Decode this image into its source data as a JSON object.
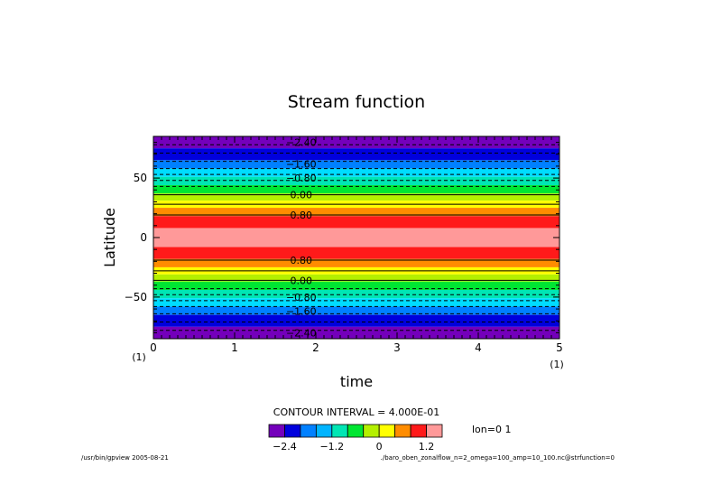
{
  "chart_data": {
    "type": "heatmap",
    "title": "Stream function",
    "xlabel": "time",
    "ylabel": "Latitude",
    "xlim": [
      0,
      5
    ],
    "ylim": [
      -85,
      85
    ],
    "x_ticks": [
      "0",
      "1",
      "2",
      "3",
      "4",
      "5"
    ],
    "x_unit_marks": [
      "(1)",
      "(1)"
    ],
    "y_ticks": [
      "50",
      "0",
      "−50"
    ],
    "y_tick_values": [
      50,
      0,
      -50
    ],
    "bands": [
      {
        "lat_min": 75,
        "lat_max": 85,
        "color": "#7400bb"
      },
      {
        "lat_min": 65,
        "lat_max": 75,
        "color": "#0000dd"
      },
      {
        "lat_min": 58,
        "lat_max": 65,
        "color": "#0080ff"
      },
      {
        "lat_min": 51,
        "lat_max": 58,
        "color": "#00dcff"
      },
      {
        "lat_min": 44,
        "lat_max": 51,
        "color": "#00e6b4"
      },
      {
        "lat_min": 37,
        "lat_max": 44,
        "color": "#00e632"
      },
      {
        "lat_min": 31,
        "lat_max": 37,
        "color": "#b4f000"
      },
      {
        "lat_min": 25,
        "lat_max": 31,
        "color": "#ffff00"
      },
      {
        "lat_min": 18,
        "lat_max": 25,
        "color": "#ff8c00"
      },
      {
        "lat_min": 8,
        "lat_max": 18,
        "color": "#ff1a1a"
      },
      {
        "lat_min": -8,
        "lat_max": 8,
        "color": "#ff9999"
      },
      {
        "lat_min": -18,
        "lat_max": -8,
        "color": "#ff1a1a"
      },
      {
        "lat_min": -25,
        "lat_max": -18,
        "color": "#ff8c00"
      },
      {
        "lat_min": -31,
        "lat_max": -25,
        "color": "#ffff00"
      },
      {
        "lat_min": -37,
        "lat_max": -31,
        "color": "#b4f000"
      },
      {
        "lat_min": -44,
        "lat_max": -37,
        "color": "#00e632"
      },
      {
        "lat_min": -51,
        "lat_max": -44,
        "color": "#00e6b4"
      },
      {
        "lat_min": -58,
        "lat_max": -51,
        "color": "#00dcff"
      },
      {
        "lat_min": -65,
        "lat_max": -58,
        "color": "#0080ff"
      },
      {
        "lat_min": -75,
        "lat_max": -65,
        "color": "#0000dd"
      },
      {
        "lat_min": -85,
        "lat_max": -75,
        "color": "#7400bb"
      }
    ],
    "contours": [
      {
        "lat": 78,
        "dashed": true
      },
      {
        "lat": 71,
        "dashed": true
      },
      {
        "lat": 64,
        "dashed": true
      },
      {
        "lat": 58,
        "dashed": true
      },
      {
        "lat": 53,
        "dashed": true
      },
      {
        "lat": 48,
        "dashed": true
      },
      {
        "lat": 43,
        "dashed": true
      },
      {
        "lat": 36,
        "dashed": false
      },
      {
        "lat": 28,
        "dashed": false
      },
      {
        "lat": 19,
        "dashed": false
      },
      {
        "lat": -19,
        "dashed": false
      },
      {
        "lat": -28,
        "dashed": false
      },
      {
        "lat": -36,
        "dashed": false
      },
      {
        "lat": -43,
        "dashed": true
      },
      {
        "lat": -48,
        "dashed": true
      },
      {
        "lat": -53,
        "dashed": true
      },
      {
        "lat": -58,
        "dashed": true
      },
      {
        "lat": -64,
        "dashed": true
      },
      {
        "lat": -71,
        "dashed": true
      },
      {
        "lat": -78,
        "dashed": true
      }
    ],
    "contour_labels": [
      {
        "text": "−2.40",
        "lat": 80
      },
      {
        "text": "−1.60",
        "lat": 62
      },
      {
        "text": "−0.80",
        "lat": 50
      },
      {
        "text": "0.00",
        "lat": 36
      },
      {
        "text": "0.80",
        "lat": 19
      },
      {
        "text": "0.80",
        "lat": -19
      },
      {
        "text": "0.00",
        "lat": -36
      },
      {
        "text": "−0.80",
        "lat": -50
      },
      {
        "text": "−1.60",
        "lat": -62
      },
      {
        "text": "−2.40",
        "lat": -80
      }
    ],
    "contour_interval_text": "CONTOUR INTERVAL = 4.000E-01",
    "colorbar": {
      "colors": [
        "#7400bb",
        "#0000dd",
        "#0080ff",
        "#00b4ff",
        "#00e6b4",
        "#00e632",
        "#b4f000",
        "#ffff00",
        "#ff8c00",
        "#ff1a1a",
        "#ff9999"
      ],
      "tick_labels": [
        {
          "text": "−2.4",
          "value": -2.4
        },
        {
          "text": "−1.2",
          "value": -1.2
        },
        {
          "text": "0",
          "value": 0
        },
        {
          "text": "1.2",
          "value": 1.2
        }
      ],
      "vmin": -2.8,
      "vmax": 1.6
    },
    "annotation_right": "lon=0 1",
    "footer_left": "/usr/bin/gpview  2005-08-21",
    "footer_right": "./baro_oben_zonalflow_n=2_omega=100_amp=10_100.nc@strfunction=0"
  }
}
